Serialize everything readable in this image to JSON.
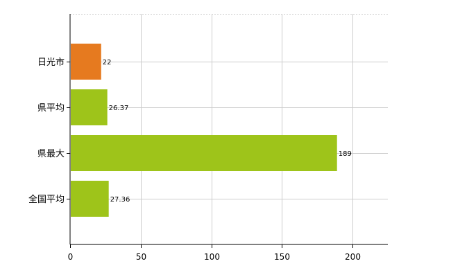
{
  "chart_data": {
    "type": "bar",
    "orientation": "horizontal",
    "categories": [
      "日光市",
      "県平均",
      "県最大",
      "全国平均"
    ],
    "values": [
      22,
      26.37,
      189,
      27.36
    ],
    "value_labels": [
      "22",
      "26.37",
      "189",
      "27.36"
    ],
    "colors": [
      "#e67a1f",
      "#9ec41a",
      "#9ec41a",
      "#9ec41a"
    ],
    "title": "",
    "xlabel": "",
    "ylabel": "",
    "xlim": [
      0,
      225
    ],
    "xticks": [
      0,
      50,
      100,
      150,
      200
    ],
    "xtick_labels": [
      "0",
      "50",
      "100",
      "150",
      "200"
    ],
    "grid": true,
    "legend": "none"
  }
}
